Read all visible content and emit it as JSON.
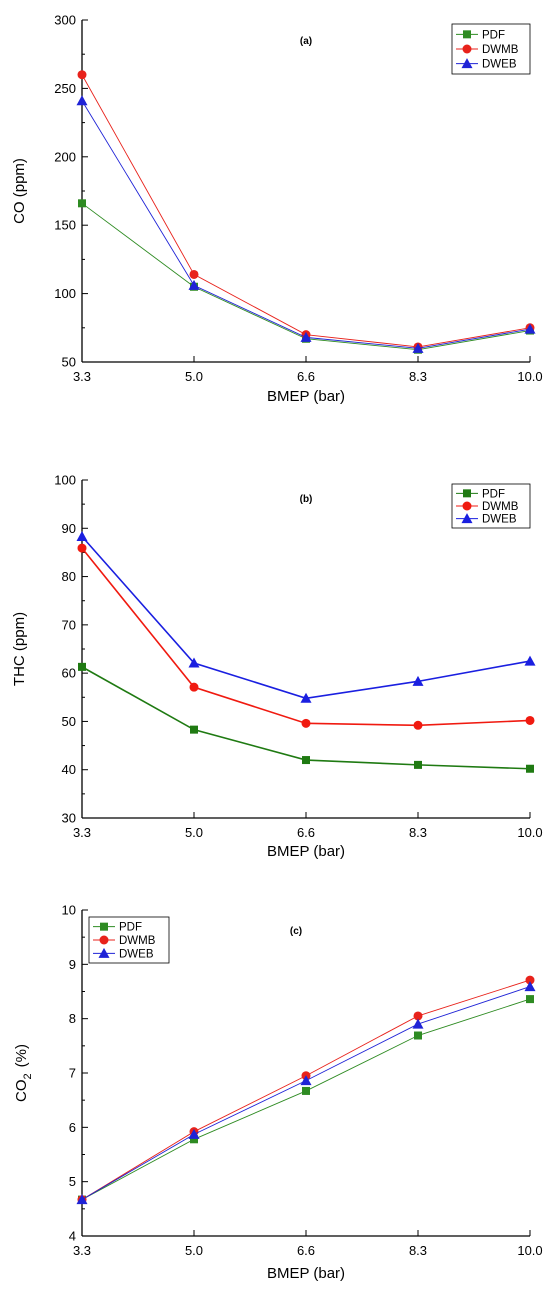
{
  "chart_data": [
    {
      "type": "line",
      "panel_label": "(a)",
      "xlabel": "BMEP (bar)",
      "ylabel": "CO (ppm)",
      "categories": [
        "3.3",
        "5.0",
        "6.6",
        "8.3",
        "10.0"
      ],
      "ylim": [
        50,
        300
      ],
      "yticks": [
        "50",
        "100",
        "150",
        "200",
        "250",
        "300"
      ],
      "legend_position": "top-right",
      "series": [
        {
          "name": "PDF",
          "color": "#2e8b22",
          "marker": "square",
          "values": [
            166,
            105,
            67,
            59,
            73
          ]
        },
        {
          "name": "DWMB",
          "color": "#e8221b",
          "marker": "circle",
          "values": [
            260,
            114,
            70,
            61,
            75
          ]
        },
        {
          "name": "DWEB",
          "color": "#1f23d6",
          "marker": "triangle",
          "values": [
            241,
            106,
            68,
            60,
            74
          ]
        }
      ]
    },
    {
      "type": "line",
      "panel_label": "(b)",
      "xlabel": "BMEP (bar)",
      "ylabel": "THC  (ppm)",
      "categories": [
        "3.3",
        "5.0",
        "6.6",
        "8.3",
        "10.0"
      ],
      "ylim": [
        30,
        100
      ],
      "yticks": [
        "30",
        "40",
        "50",
        "60",
        "70",
        "80",
        "90",
        "100"
      ],
      "legend_position": "top-right",
      "series": [
        {
          "name": "PDF",
          "color": "#1f7a12",
          "marker": "square",
          "values": [
            61.3,
            48.3,
            42.0,
            41.0,
            40.2
          ]
        },
        {
          "name": "DWMB",
          "color": "#f01a10",
          "marker": "circle",
          "values": [
            85.9,
            57.1,
            49.6,
            49.2,
            50.2
          ]
        },
        {
          "name": "DWEB",
          "color": "#1a1fe0",
          "marker": "triangle",
          "values": [
            88.3,
            62.1,
            54.8,
            58.3,
            62.5
          ]
        }
      ]
    },
    {
      "type": "line",
      "panel_label": "(c)",
      "xlabel": "BMEP (bar)",
      "ylabel": "CO",
      "ylabel_sub": "2",
      "ylabel_unit": "(%)",
      "categories": [
        "3.3",
        "5.0",
        "6.6",
        "8.3",
        "10.0"
      ],
      "ylim": [
        4,
        10
      ],
      "yticks": [
        "4",
        "5",
        "6",
        "7",
        "8",
        "9",
        "10"
      ],
      "legend_position": "top-left",
      "series": [
        {
          "name": "PDF",
          "color": "#2e8b22",
          "marker": "square",
          "values": [
            4.67,
            5.78,
            6.67,
            7.69,
            8.36
          ]
        },
        {
          "name": "DWMB",
          "color": "#e8221b",
          "marker": "circle",
          "values": [
            4.67,
            5.92,
            6.95,
            8.05,
            8.71
          ]
        },
        {
          "name": "DWEB",
          "color": "#1f23d6",
          "marker": "triangle",
          "values": [
            4.67,
            5.87,
            6.86,
            7.9,
            8.59
          ]
        }
      ]
    }
  ]
}
